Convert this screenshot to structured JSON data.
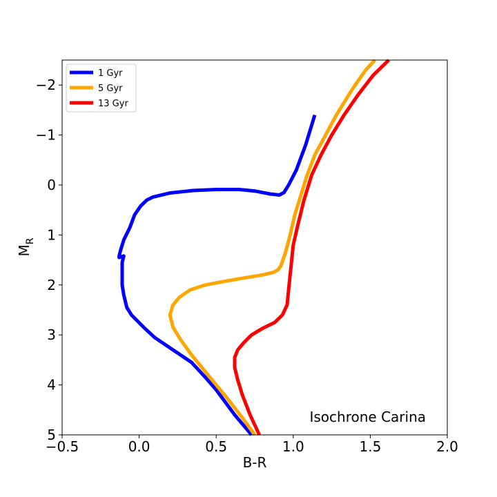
{
  "chart_data": {
    "type": "line",
    "title": "",
    "xlabel": "B-R",
    "ylabel_main": "M",
    "ylabel_sub": "R",
    "xlim": [
      -0.5,
      2.0
    ],
    "ylim": [
      5,
      -2.5
    ],
    "y_inverted": true,
    "xticks": [
      -0.5,
      0.0,
      0.5,
      1.0,
      1.5,
      2.0
    ],
    "xtick_labels": [
      "−0.5",
      "0.0",
      "0.5",
      "1.0",
      "1.5",
      "2.0"
    ],
    "yticks": [
      -2,
      -1,
      0,
      1,
      2,
      3,
      4,
      5
    ],
    "ytick_labels": [
      "−2",
      "−1",
      "0",
      "1",
      "2",
      "3",
      "4",
      "5"
    ],
    "grid": false,
    "legend_position": "top-left",
    "annotation": "Isochrone Carina",
    "series": [
      {
        "name": "1 Gyr",
        "color": "#0000ff",
        "points": [
          [
            0.73,
            5.0
          ],
          [
            0.62,
            4.6
          ],
          [
            0.5,
            4.1
          ],
          [
            0.43,
            3.85
          ],
          [
            0.34,
            3.55
          ],
          [
            0.22,
            3.3
          ],
          [
            0.1,
            3.05
          ],
          [
            0.03,
            2.85
          ],
          [
            -0.05,
            2.6
          ],
          [
            -0.08,
            2.45
          ],
          [
            -0.1,
            2.2
          ],
          [
            -0.11,
            2.0
          ],
          [
            -0.11,
            1.75
          ],
          [
            -0.11,
            1.55
          ],
          [
            -0.1,
            1.42
          ],
          [
            -0.13,
            1.45
          ],
          [
            -0.13,
            1.42
          ],
          [
            -0.12,
            1.3
          ],
          [
            -0.1,
            1.1
          ],
          [
            -0.06,
            0.85
          ],
          [
            -0.03,
            0.6
          ],
          [
            0.01,
            0.42
          ],
          [
            0.05,
            0.3
          ],
          [
            0.09,
            0.24
          ],
          [
            0.2,
            0.16
          ],
          [
            0.35,
            0.11
          ],
          [
            0.5,
            0.09
          ],
          [
            0.65,
            0.09
          ],
          [
            0.75,
            0.12
          ],
          [
            0.85,
            0.18
          ],
          [
            0.91,
            0.2
          ],
          [
            0.94,
            0.15
          ],
          [
            0.97,
            0.0
          ],
          [
            1.02,
            -0.3
          ],
          [
            1.08,
            -0.8
          ],
          [
            1.14,
            -1.4
          ]
        ]
      },
      {
        "name": "5 Gyr",
        "color": "#ffa500",
        "points": [
          [
            0.75,
            5.0
          ],
          [
            0.68,
            4.7
          ],
          [
            0.58,
            4.3
          ],
          [
            0.5,
            4.0
          ],
          [
            0.42,
            3.7
          ],
          [
            0.34,
            3.4
          ],
          [
            0.27,
            3.1
          ],
          [
            0.22,
            2.85
          ],
          [
            0.2,
            2.6
          ],
          [
            0.22,
            2.4
          ],
          [
            0.26,
            2.25
          ],
          [
            0.33,
            2.1
          ],
          [
            0.43,
            2.0
          ],
          [
            0.55,
            1.93
          ],
          [
            0.68,
            1.86
          ],
          [
            0.8,
            1.8
          ],
          [
            0.87,
            1.75
          ],
          [
            0.9,
            1.7
          ],
          [
            0.92,
            1.62
          ],
          [
            0.95,
            1.35
          ],
          [
            0.98,
            1.0
          ],
          [
            1.01,
            0.6
          ],
          [
            1.05,
            0.2
          ],
          [
            1.09,
            -0.2
          ],
          [
            1.14,
            -0.6
          ],
          [
            1.21,
            -1.0
          ],
          [
            1.28,
            -1.4
          ],
          [
            1.38,
            -1.9
          ],
          [
            1.47,
            -2.3
          ],
          [
            1.53,
            -2.5
          ]
        ]
      },
      {
        "name": "13 Gyr",
        "color": "#ff0000",
        "points": [
          [
            0.78,
            5.0
          ],
          [
            0.72,
            4.6
          ],
          [
            0.67,
            4.2
          ],
          [
            0.64,
            3.9
          ],
          [
            0.62,
            3.65
          ],
          [
            0.62,
            3.45
          ],
          [
            0.64,
            3.3
          ],
          [
            0.68,
            3.15
          ],
          [
            0.73,
            3.0
          ],
          [
            0.8,
            2.87
          ],
          [
            0.88,
            2.75
          ],
          [
            0.93,
            2.6
          ],
          [
            0.96,
            2.4
          ],
          [
            0.97,
            2.1
          ],
          [
            0.98,
            1.8
          ],
          [
            0.99,
            1.5
          ],
          [
            1.0,
            1.2
          ],
          [
            1.03,
            0.8
          ],
          [
            1.07,
            0.3
          ],
          [
            1.12,
            -0.2
          ],
          [
            1.18,
            -0.6
          ],
          [
            1.25,
            -1.0
          ],
          [
            1.33,
            -1.4
          ],
          [
            1.42,
            -1.8
          ],
          [
            1.52,
            -2.2
          ],
          [
            1.62,
            -2.5
          ]
        ]
      }
    ]
  }
}
